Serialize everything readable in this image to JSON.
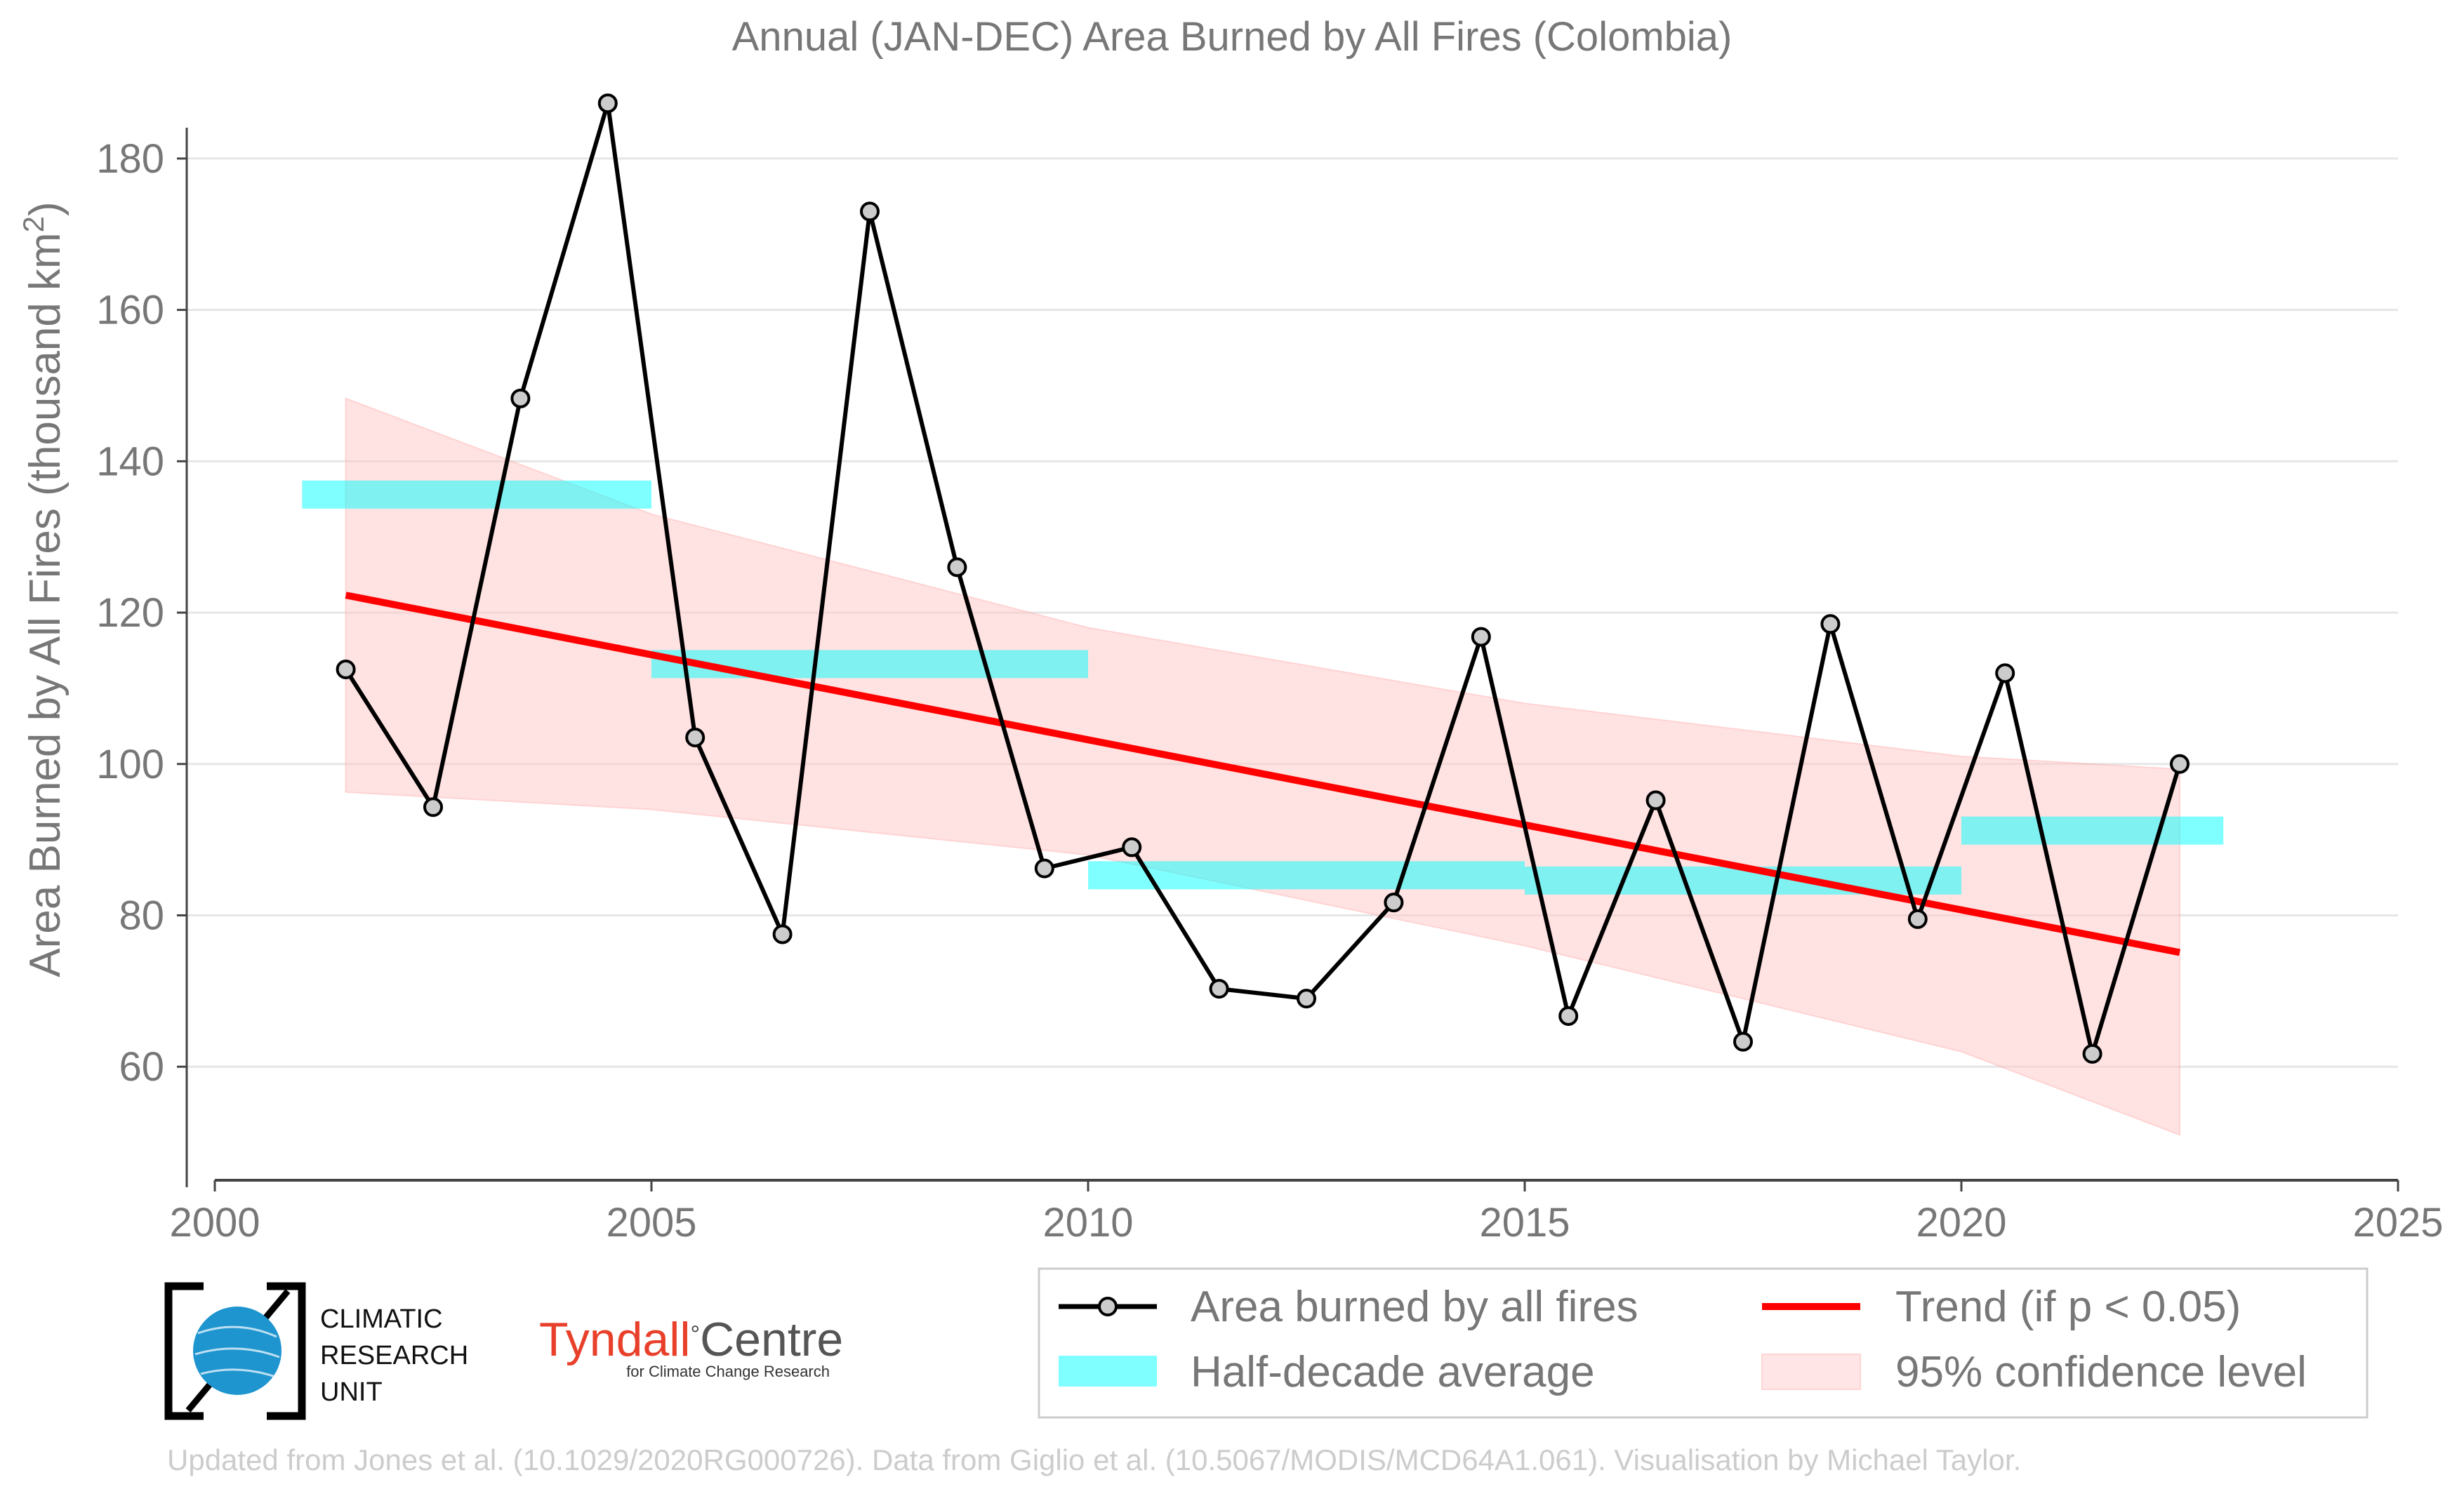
{
  "chart_data": {
    "type": "line",
    "title": "Annual (JAN-DEC) Area Burned by All Fires (Colombia)",
    "xlabel": "",
    "ylabel": "Area Burned by All Fires (thousand km²)",
    "xlim": [
      2000,
      2025
    ],
    "ylim": [
      45,
      185
    ],
    "xticks": [
      2000,
      2005,
      2010,
      2015,
      2020,
      2025
    ],
    "yticks": [
      60,
      80,
      100,
      120,
      140,
      160,
      180
    ],
    "grid": "horizontal",
    "legend_position": "bottom-right",
    "series": [
      {
        "name": "Area burned by all fires",
        "color": "#000000",
        "x": [
          2001.5,
          2002.5,
          2003.5,
          2004.5,
          2005.5,
          2006.5,
          2007.5,
          2008.5,
          2009.5,
          2010.5,
          2011.5,
          2012.5,
          2013.5,
          2014.5,
          2015.5,
          2016.5,
          2017.5,
          2018.5,
          2019.5,
          2020.5,
          2021.5,
          2022.5
        ],
        "values": [
          112.5,
          94.3,
          148.3,
          187.3,
          103.5,
          77.5,
          173.0,
          126.0,
          86.2,
          89.0,
          70.3,
          69.0,
          81.7,
          116.8,
          66.7,
          95.2,
          63.3,
          118.5,
          79.5,
          112.0,
          61.7,
          100.0
        ]
      },
      {
        "name": "Half-decade average",
        "color": "#00ffff",
        "segments": [
          {
            "x_start": 2001.0,
            "x_end": 2005.0,
            "value": 135.6
          },
          {
            "x_start": 2005.0,
            "x_end": 2010.0,
            "value": 113.2
          },
          {
            "x_start": 2010.0,
            "x_end": 2015.0,
            "value": 85.3
          },
          {
            "x_start": 2015.0,
            "x_end": 2020.0,
            "value": 84.6
          },
          {
            "x_start": 2020.0,
            "x_end": 2023.0,
            "value": 91.2
          }
        ]
      },
      {
        "name": "Trend (if p < 0.05)",
        "color": "#ff0000",
        "x": [
          2001.5,
          2022.5
        ],
        "values": [
          122.3,
          75.1
        ]
      },
      {
        "name": "95% confidence level",
        "color": "#ffcccc",
        "x": [
          2001.5,
          2005.0,
          2010.0,
          2015.0,
          2020.0,
          2022.5
        ],
        "upper": [
          148.3,
          133.0,
          118.0,
          108.0,
          101.0,
          99.3
        ],
        "lower": [
          96.3,
          94.0,
          88.0,
          76.0,
          62.0,
          51.0
        ]
      }
    ]
  },
  "footer_text": "Updated from Jones et al. (10.1029/2020RG000726). Data from Giglio et al. (10.5067/MODIS/MCD64A1.061). Visualisation by Michael Taylor.",
  "logos": {
    "cru": {
      "line1": "CLIMATIC",
      "line2": "RESEARCH",
      "line3": "UNIT"
    },
    "tyndall": {
      "name_a": "Tyndall",
      "degree": "°",
      "name_b": "Centre",
      "subtitle": "for Climate Change Research"
    }
  },
  "colors": {
    "text_gray": "#777777",
    "tyndall_red": "#e8402a",
    "globe_blue": "#1f95d0"
  }
}
